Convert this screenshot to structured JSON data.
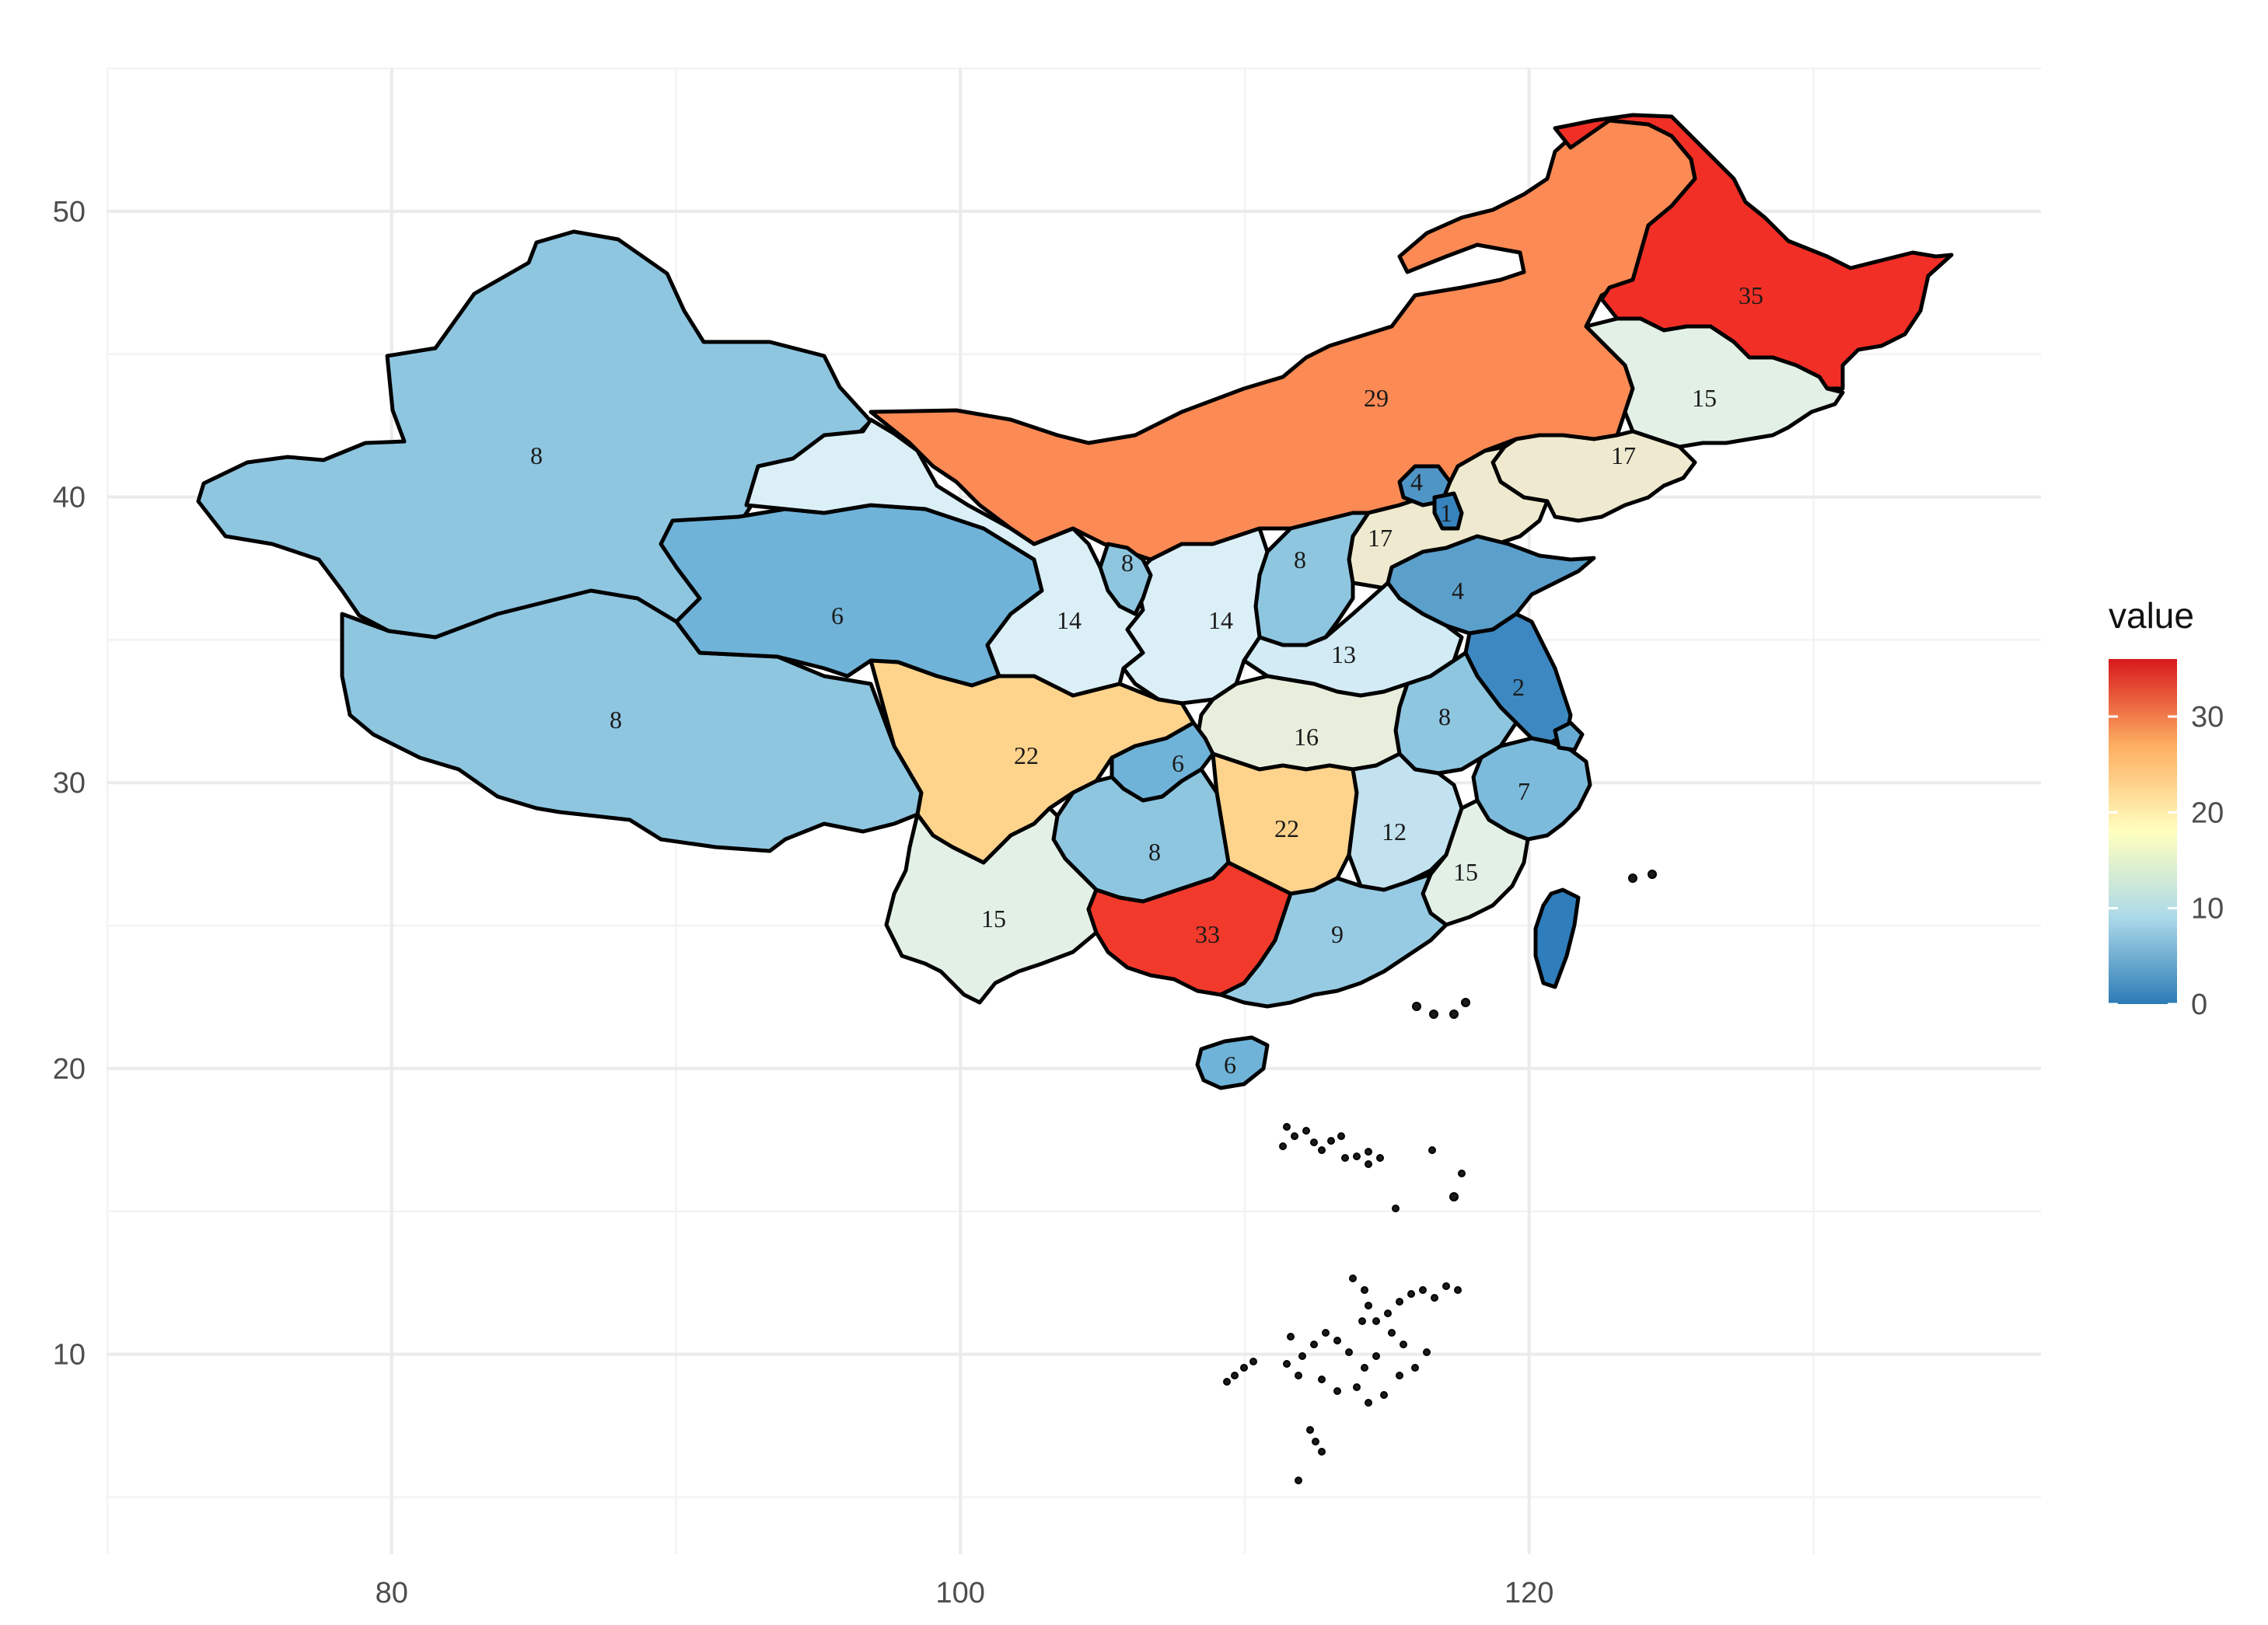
{
  "map": {
    "x_ticks": [
      "80",
      "100",
      "120"
    ],
    "y_ticks": [
      "10",
      "20",
      "30",
      "40",
      "50"
    ],
    "x_minor_ticks": [
      70,
      90,
      110,
      130
    ],
    "y_minor_ticks": [
      5,
      15,
      25,
      35,
      45,
      55
    ],
    "xlim": [
      70,
      138
    ],
    "ylim": [
      3,
      55
    ],
    "legend": {
      "title": "value",
      "ticks": [
        "0",
        "10",
        "20",
        "30"
      ],
      "min": 0,
      "max": 36,
      "colors": [
        "#2c7bb6",
        "#abd9e9",
        "#ffffbf",
        "#fdae61",
        "#d7191c"
      ]
    },
    "regions": [
      {
        "name": "xinjiang",
        "value": 8,
        "label": "8",
        "fill": "#8ec6e0"
      },
      {
        "name": "tibet",
        "value": 8,
        "label": "8",
        "fill": "#8ec6e0"
      },
      {
        "name": "qinghai",
        "value": 6,
        "label": "6",
        "fill": "#6fb3d8"
      },
      {
        "name": "gansu",
        "value": 14,
        "label": "14",
        "fill": "#dbeff6"
      },
      {
        "name": "inner-mongolia",
        "value": 29,
        "label": "29",
        "fill": "#fc8a54"
      },
      {
        "name": "heilongjiang",
        "value": 35,
        "label": "35",
        "fill": "#f22f26"
      },
      {
        "name": "jilin",
        "value": 15,
        "label": "15",
        "fill": "#e3f0e6"
      },
      {
        "name": "liaoning",
        "value": 17,
        "label": "17",
        "fill": "#efeacf"
      },
      {
        "name": "hebei",
        "value": 17,
        "label": "17",
        "fill": "#efeacf"
      },
      {
        "name": "beijing",
        "value": 4,
        "label": "4",
        "fill": "#4f95c6"
      },
      {
        "name": "tianjin",
        "value": 1,
        "label": "1",
        "fill": "#3683bd"
      },
      {
        "name": "shanxi",
        "value": 8,
        "label": "8",
        "fill": "#8ec6e0"
      },
      {
        "name": "shaanxi",
        "value": 14,
        "label": "14",
        "fill": "#dbeff6"
      },
      {
        "name": "ningxia",
        "value": 8,
        "label": "8",
        "fill": "#8ec6e0"
      },
      {
        "name": "shandong",
        "value": 4,
        "label": "4",
        "fill": "#5b9fcb"
      },
      {
        "name": "henan",
        "value": 13,
        "label": "13",
        "fill": "#d2ebf5"
      },
      {
        "name": "jiangsu",
        "value": 2,
        "label": "2",
        "fill": "#3d88c0"
      },
      {
        "name": "anhui",
        "value": 8,
        "label": "8",
        "fill": "#8ec6e0"
      },
      {
        "name": "hubei",
        "value": 16,
        "label": "16",
        "fill": "#e8eedc"
      },
      {
        "name": "sichuan",
        "value": 22,
        "label": "22",
        "fill": "#fed38c"
      },
      {
        "name": "chongqing",
        "value": 6,
        "label": "6",
        "fill": "#6fb3d8"
      },
      {
        "name": "hunan",
        "value": 22,
        "label": "22",
        "fill": "#fed38c"
      },
      {
        "name": "jiangxi",
        "value": 12,
        "label": "12",
        "fill": "#c2e2f0"
      },
      {
        "name": "zhejiang",
        "value": 7,
        "label": "7",
        "fill": "#7dbbdc"
      },
      {
        "name": "fujian",
        "value": 15,
        "label": "15",
        "fill": "#e3f0e6"
      },
      {
        "name": "guizhou",
        "value": 8,
        "label": "8",
        "fill": "#8ec6e0"
      },
      {
        "name": "yunnan",
        "value": 15,
        "label": "15",
        "fill": "#e3f0e6"
      },
      {
        "name": "guangxi",
        "value": 33,
        "label": "33",
        "fill": "#f23a2c"
      },
      {
        "name": "guangdong",
        "value": 9,
        "label": "9",
        "fill": "#97cbe3"
      },
      {
        "name": "hainan",
        "value": 6,
        "label": "6",
        "fill": "#6fb3d8"
      },
      {
        "name": "taiwan",
        "value": 1,
        "label": "",
        "fill": "#2f7dbb"
      },
      {
        "name": "shanghai",
        "value": 5,
        "label": "",
        "fill": "#67abd3"
      }
    ]
  }
}
